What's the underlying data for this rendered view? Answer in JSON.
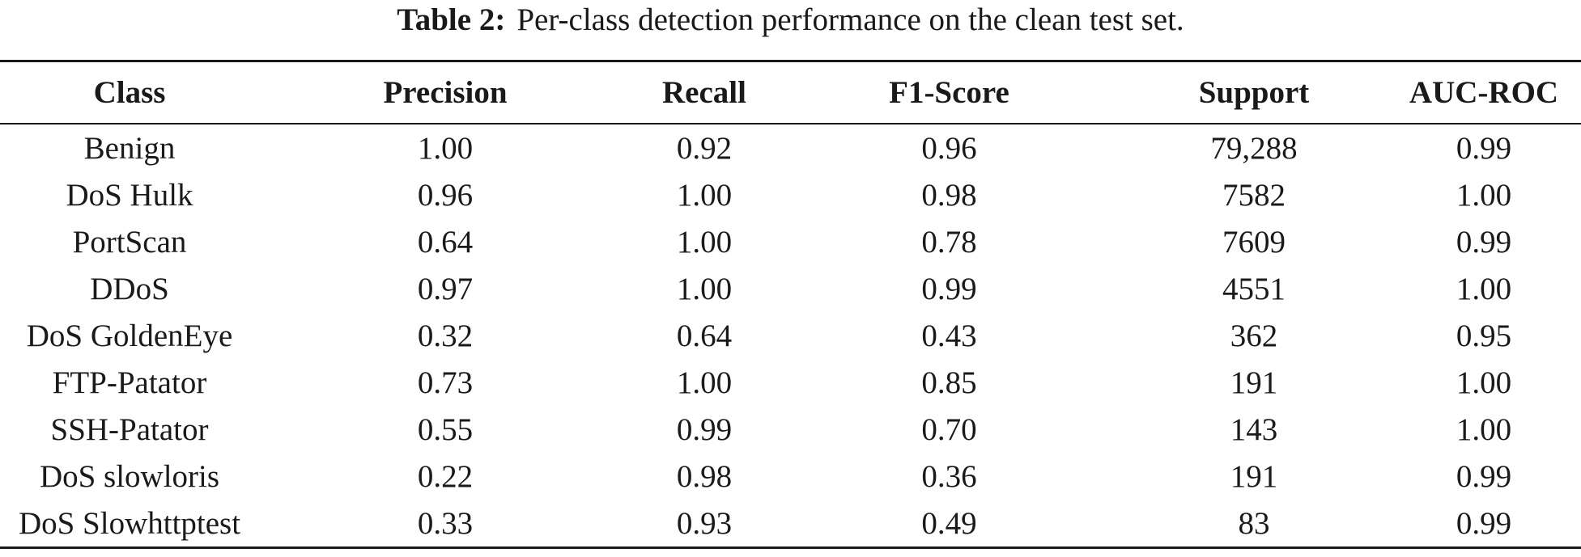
{
  "caption": {
    "label": "Table 2:",
    "text": "Per-class detection performance on the clean test set."
  },
  "table": {
    "headers": [
      "Class",
      "Precision",
      "Recall",
      "F1-Score",
      "Support",
      "AUC-ROC"
    ],
    "rows": [
      [
        "Benign",
        "1.00",
        "0.92",
        "0.96",
        "79,288",
        "0.99"
      ],
      [
        "DoS Hulk",
        "0.96",
        "1.00",
        "0.98",
        "7582",
        "1.00"
      ],
      [
        "PortScan",
        "0.64",
        "1.00",
        "0.78",
        "7609",
        "0.99"
      ],
      [
        "DDoS",
        "0.97",
        "1.00",
        "0.99",
        "4551",
        "1.00"
      ],
      [
        "DoS GoldenEye",
        "0.32",
        "0.64",
        "0.43",
        "362",
        "0.95"
      ],
      [
        "FTP-Patator",
        "0.73",
        "1.00",
        "0.85",
        "191",
        "1.00"
      ],
      [
        "SSH-Patator",
        "0.55",
        "0.99",
        "0.70",
        "143",
        "1.00"
      ],
      [
        "DoS slowloris",
        "0.22",
        "0.98",
        "0.36",
        "191",
        "0.99"
      ],
      [
        "DoS Slowhttptest",
        "0.33",
        "0.93",
        "0.49",
        "83",
        "0.99"
      ]
    ]
  }
}
